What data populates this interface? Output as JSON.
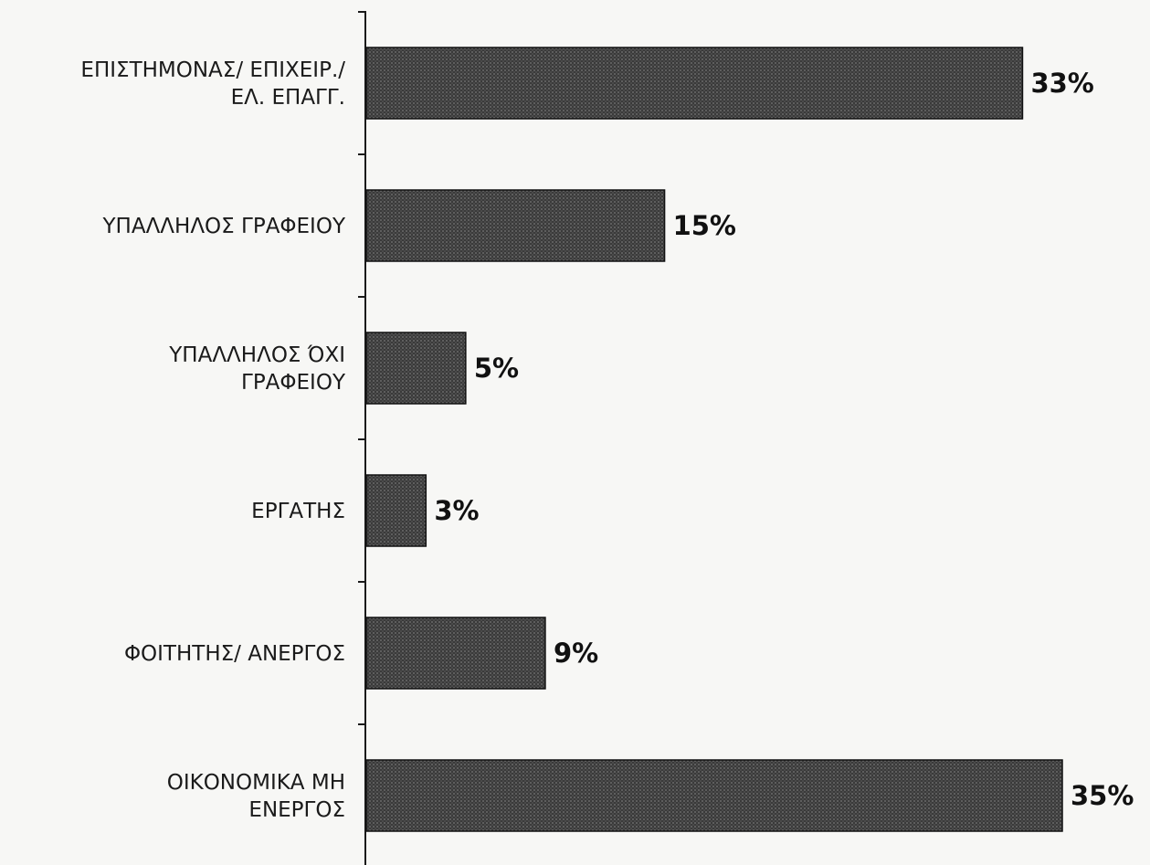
{
  "chart_data": {
    "type": "bar",
    "orientation": "horizontal",
    "categories": [
      [
        "ΕΠΙΣΤΗΜΟΝΑΣ/ ΕΠΙΧΕΙΡ./",
        "ΕΛ. ΕΠΑΓΓ."
      ],
      [
        "ΥΠΑΛΛΗΛΟΣ ΓΡΑΦΕΙΟΥ"
      ],
      [
        "ΥΠΑΛΛΗΛΟΣ ΌΧΙ",
        "ΓΡΑΦΕΙΟΥ"
      ],
      [
        "ΕΡΓΑΤΗΣ"
      ],
      [
        "ΦΟΙΤΗΤΗΣ/ ΑΝΕΡΓΟΣ"
      ],
      [
        "ΟΙΚΟΝΟΜΙΚΑ ΜΗ",
        "ΕΝΕΡΓΟΣ"
      ]
    ],
    "values": [
      33,
      15,
      5,
      3,
      9,
      35
    ],
    "data_labels": [
      "33%",
      "15%",
      "5%",
      "3%",
      "9%",
      "35%"
    ],
    "xlim": [
      0,
      35
    ],
    "grid": false,
    "legend": "none",
    "bar_color": "#3a3a3a"
  }
}
